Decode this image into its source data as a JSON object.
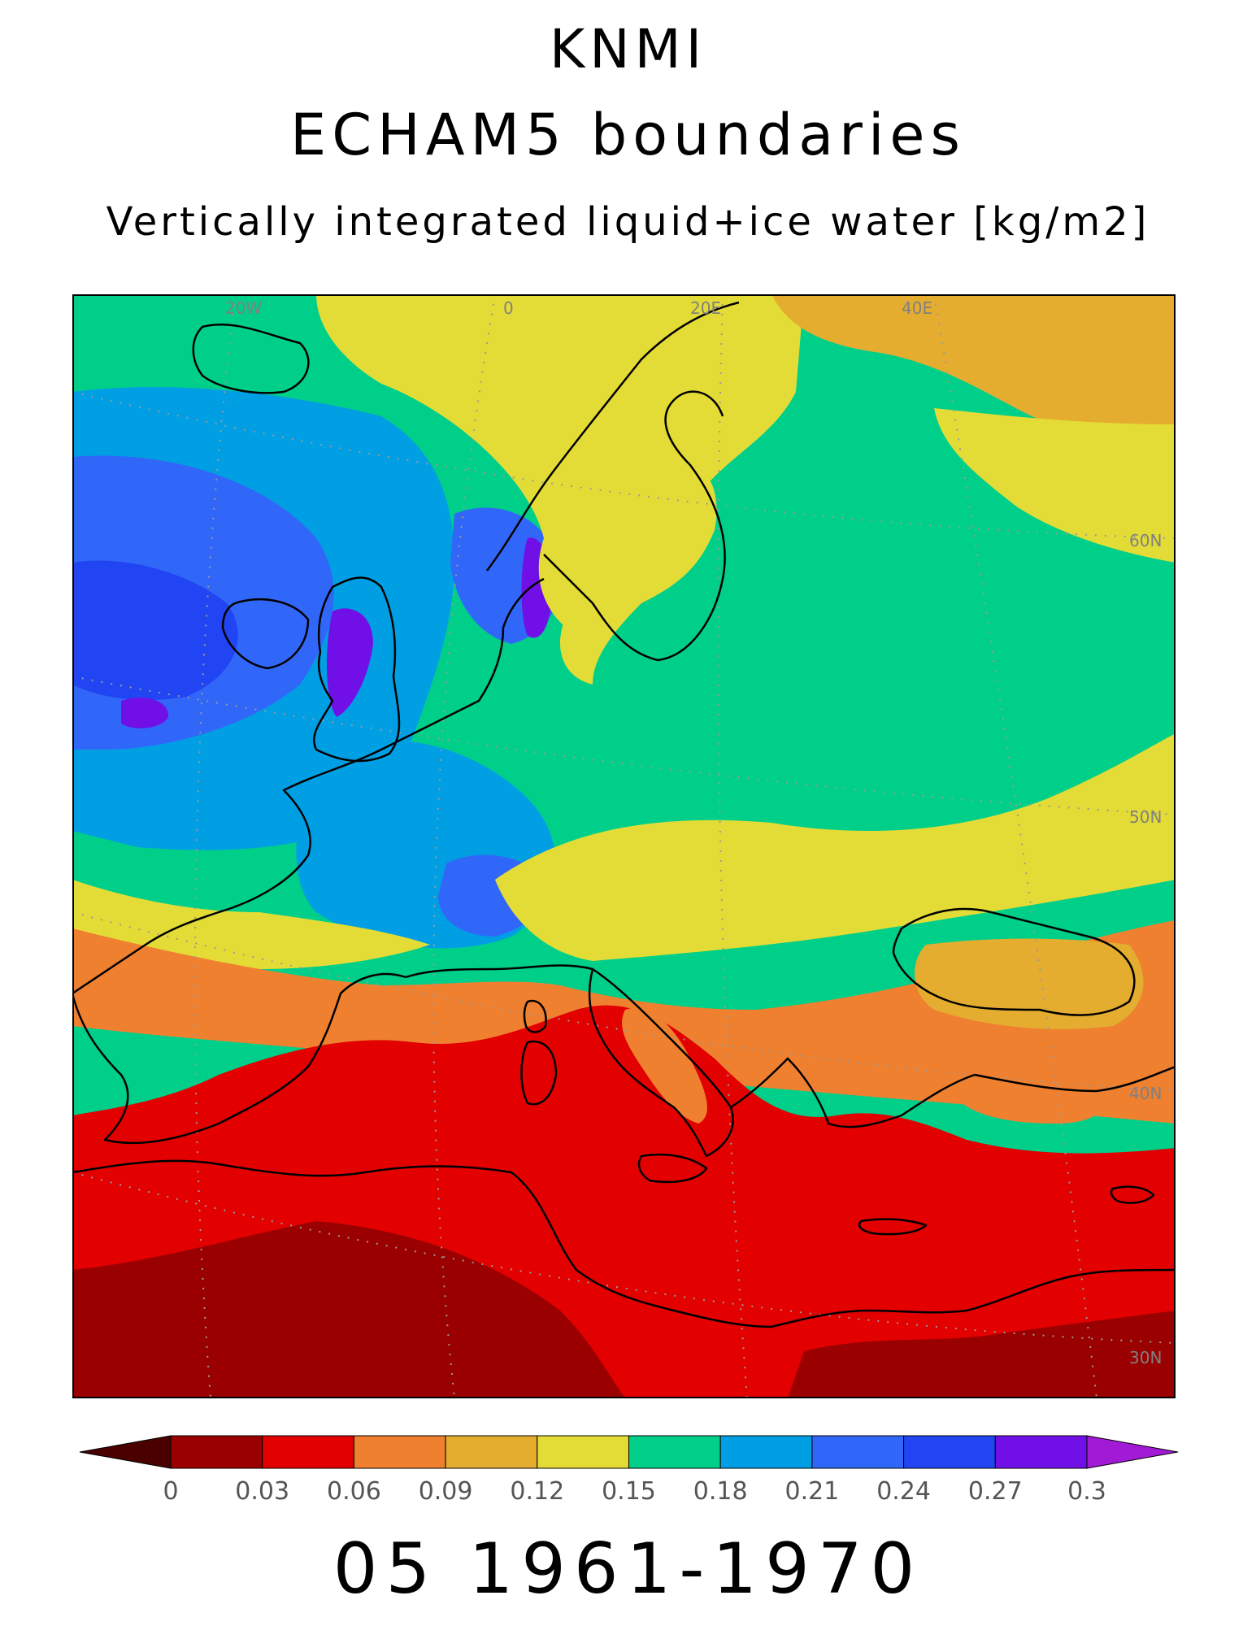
{
  "header": {
    "line1": "KNMI",
    "line2": "ECHAM5 boundaries",
    "line3": "Vertically integrated liquid+ice water [kg/m2]"
  },
  "footer": {
    "period": "05 1961-1970"
  },
  "map": {
    "grid_labels": {
      "lon": [
        "20W",
        "0",
        "20E",
        "40E"
      ],
      "lat": [
        "60N",
        "50N",
        "40N",
        "30N"
      ]
    }
  },
  "colorbar": {
    "ticks": [
      "0",
      "0.03",
      "0.06",
      "0.09",
      "0.12",
      "0.15",
      "0.18",
      "0.21",
      "0.24",
      "0.27",
      "0.3"
    ],
    "colors": [
      "#4a0000",
      "#9b0000",
      "#e30000",
      "#ef8030",
      "#e4ad30",
      "#e4dc36",
      "#00cf8a",
      "#009fe4",
      "#3167f8",
      "#2145f2",
      "#7110e6",
      "#a11ad4"
    ]
  }
}
